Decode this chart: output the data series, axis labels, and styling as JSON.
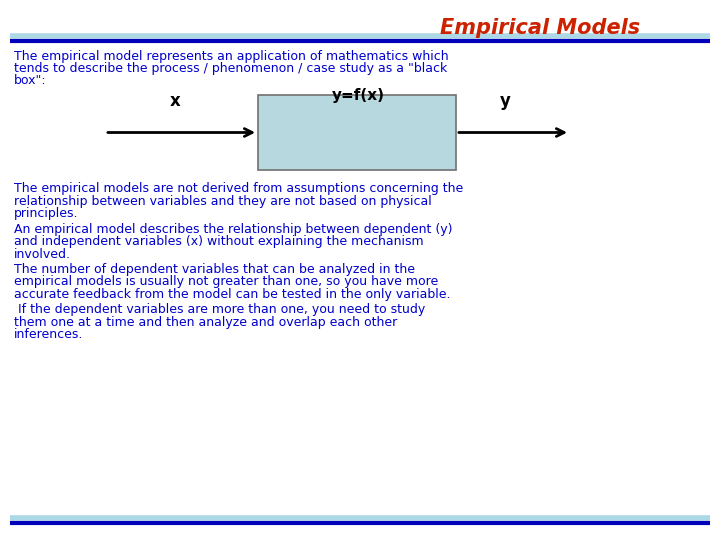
{
  "title": "Empirical Models",
  "title_color": "#CC2200",
  "title_fontsize": 15,
  "bg_color": "#FFFFFF",
  "text_color": "#0000CC",
  "header_line_color_top": "#ADD8E6",
  "header_line_color_bottom": "#0000BB",
  "footer_line_color_top": "#ADD8E6",
  "footer_line_color_bottom": "#0000BB",
  "intro_text": "The empirical model represents an application of mathematics which tends to describe the process / phenomenon / case study as a \"black\nbox\":",
  "diagram_label_top": "y=f(x)",
  "diagram_label_x": "x",
  "diagram_label_y": "y",
  "box_color": "#B8D8E0",
  "box_edge_color": "#707070",
  "para1": "The empirical models are not derived from assumptions concerning the\nrelationship between variables and they are not based on physical\nprinciples.",
  "para2": "An empirical model describes the relationship between dependent (y)\nand independent variables (x) without explaining the mechanism\ninvolved.",
  "para3": "The number of dependent variables that can be analyzed in the\nempirical models is usually not greater than one, so you have more\naccurate feedback from the model can be tested in the only variable.",
  "para4": " If the dependent variables are more than one, you need to study\nthem one at a time and then analyze and overlap each other\ninferences."
}
